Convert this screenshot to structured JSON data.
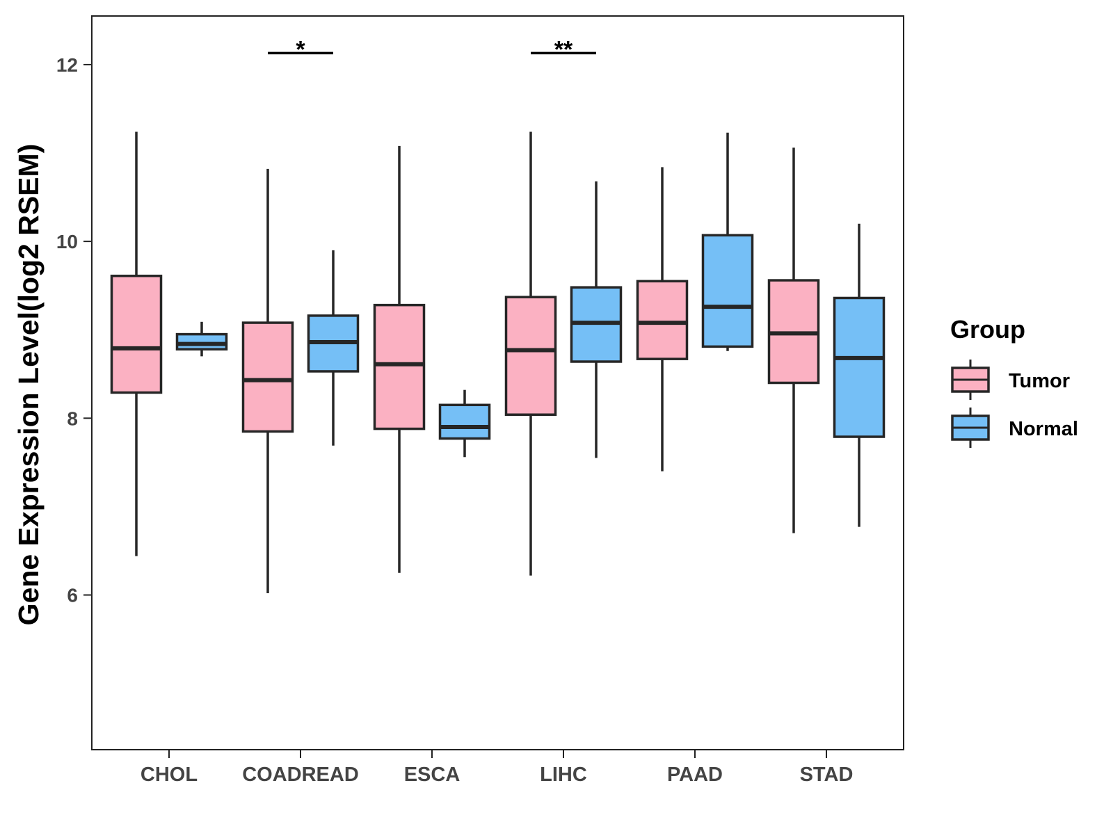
{
  "chart_data": {
    "type": "boxplot",
    "title": "",
    "xlabel": "",
    "ylabel": "Gene Expression Level(log2 RSEM)",
    "ylim": [
      4.25,
      12.55
    ],
    "yticks": [
      6,
      8,
      10,
      12
    ],
    "ytick_labels": [
      "6",
      "8",
      "10",
      "12"
    ],
    "grid": false,
    "categories": [
      "CHOL",
      "COADREAD",
      "ESCA",
      "LIHC",
      "PAAD",
      "STAD"
    ],
    "groups": [
      {
        "name": "Tumor",
        "color": "#FBB1C2"
      },
      {
        "name": "Normal",
        "color": "#75BFF6"
      }
    ],
    "boxes": [
      {
        "category": "CHOL",
        "group": "Tumor",
        "min": 6.44,
        "q1": 8.29,
        "median": 8.79,
        "q3": 9.61,
        "max": 11.24
      },
      {
        "category": "CHOL",
        "group": "Normal",
        "min": 8.7,
        "q1": 8.78,
        "median": 8.84,
        "q3": 8.95,
        "max": 9.09
      },
      {
        "category": "COADREAD",
        "group": "Tumor",
        "min": 6.02,
        "q1": 7.85,
        "median": 8.43,
        "q3": 9.08,
        "max": 10.82
      },
      {
        "category": "COADREAD",
        "group": "Normal",
        "min": 7.69,
        "q1": 8.53,
        "median": 8.86,
        "q3": 9.16,
        "max": 9.9
      },
      {
        "category": "ESCA",
        "group": "Tumor",
        "min": 6.25,
        "q1": 7.88,
        "median": 8.61,
        "q3": 9.28,
        "max": 11.08
      },
      {
        "category": "ESCA",
        "group": "Normal",
        "min": 7.56,
        "q1": 7.77,
        "median": 7.9,
        "q3": 8.15,
        "max": 8.32
      },
      {
        "category": "LIHC",
        "group": "Tumor",
        "min": 6.22,
        "q1": 8.04,
        "median": 8.77,
        "q3": 9.37,
        "max": 11.24
      },
      {
        "category": "LIHC",
        "group": "Normal",
        "min": 7.55,
        "q1": 8.64,
        "median": 9.08,
        "q3": 9.48,
        "max": 10.68
      },
      {
        "category": "PAAD",
        "group": "Tumor",
        "min": 7.4,
        "q1": 8.67,
        "median": 9.08,
        "q3": 9.55,
        "max": 10.84
      },
      {
        "category": "PAAD",
        "group": "Normal",
        "min": 8.76,
        "q1": 8.81,
        "median": 9.26,
        "q3": 10.07,
        "max": 11.23
      },
      {
        "category": "STAD",
        "group": "Tumor",
        "min": 6.7,
        "q1": 8.4,
        "median": 8.96,
        "q3": 9.56,
        "max": 11.06
      },
      {
        "category": "STAD",
        "group": "Normal",
        "min": 6.77,
        "q1": 7.79,
        "median": 8.68,
        "q3": 9.36,
        "max": 10.2
      }
    ],
    "significance": [
      {
        "category": "COADREAD",
        "label": "*",
        "y": 12.13
      },
      {
        "category": "LIHC",
        "label": "**",
        "y": 12.13
      }
    ],
    "legend": {
      "title": "Group",
      "position": "right",
      "items": [
        "Tumor",
        "Normal"
      ]
    }
  }
}
